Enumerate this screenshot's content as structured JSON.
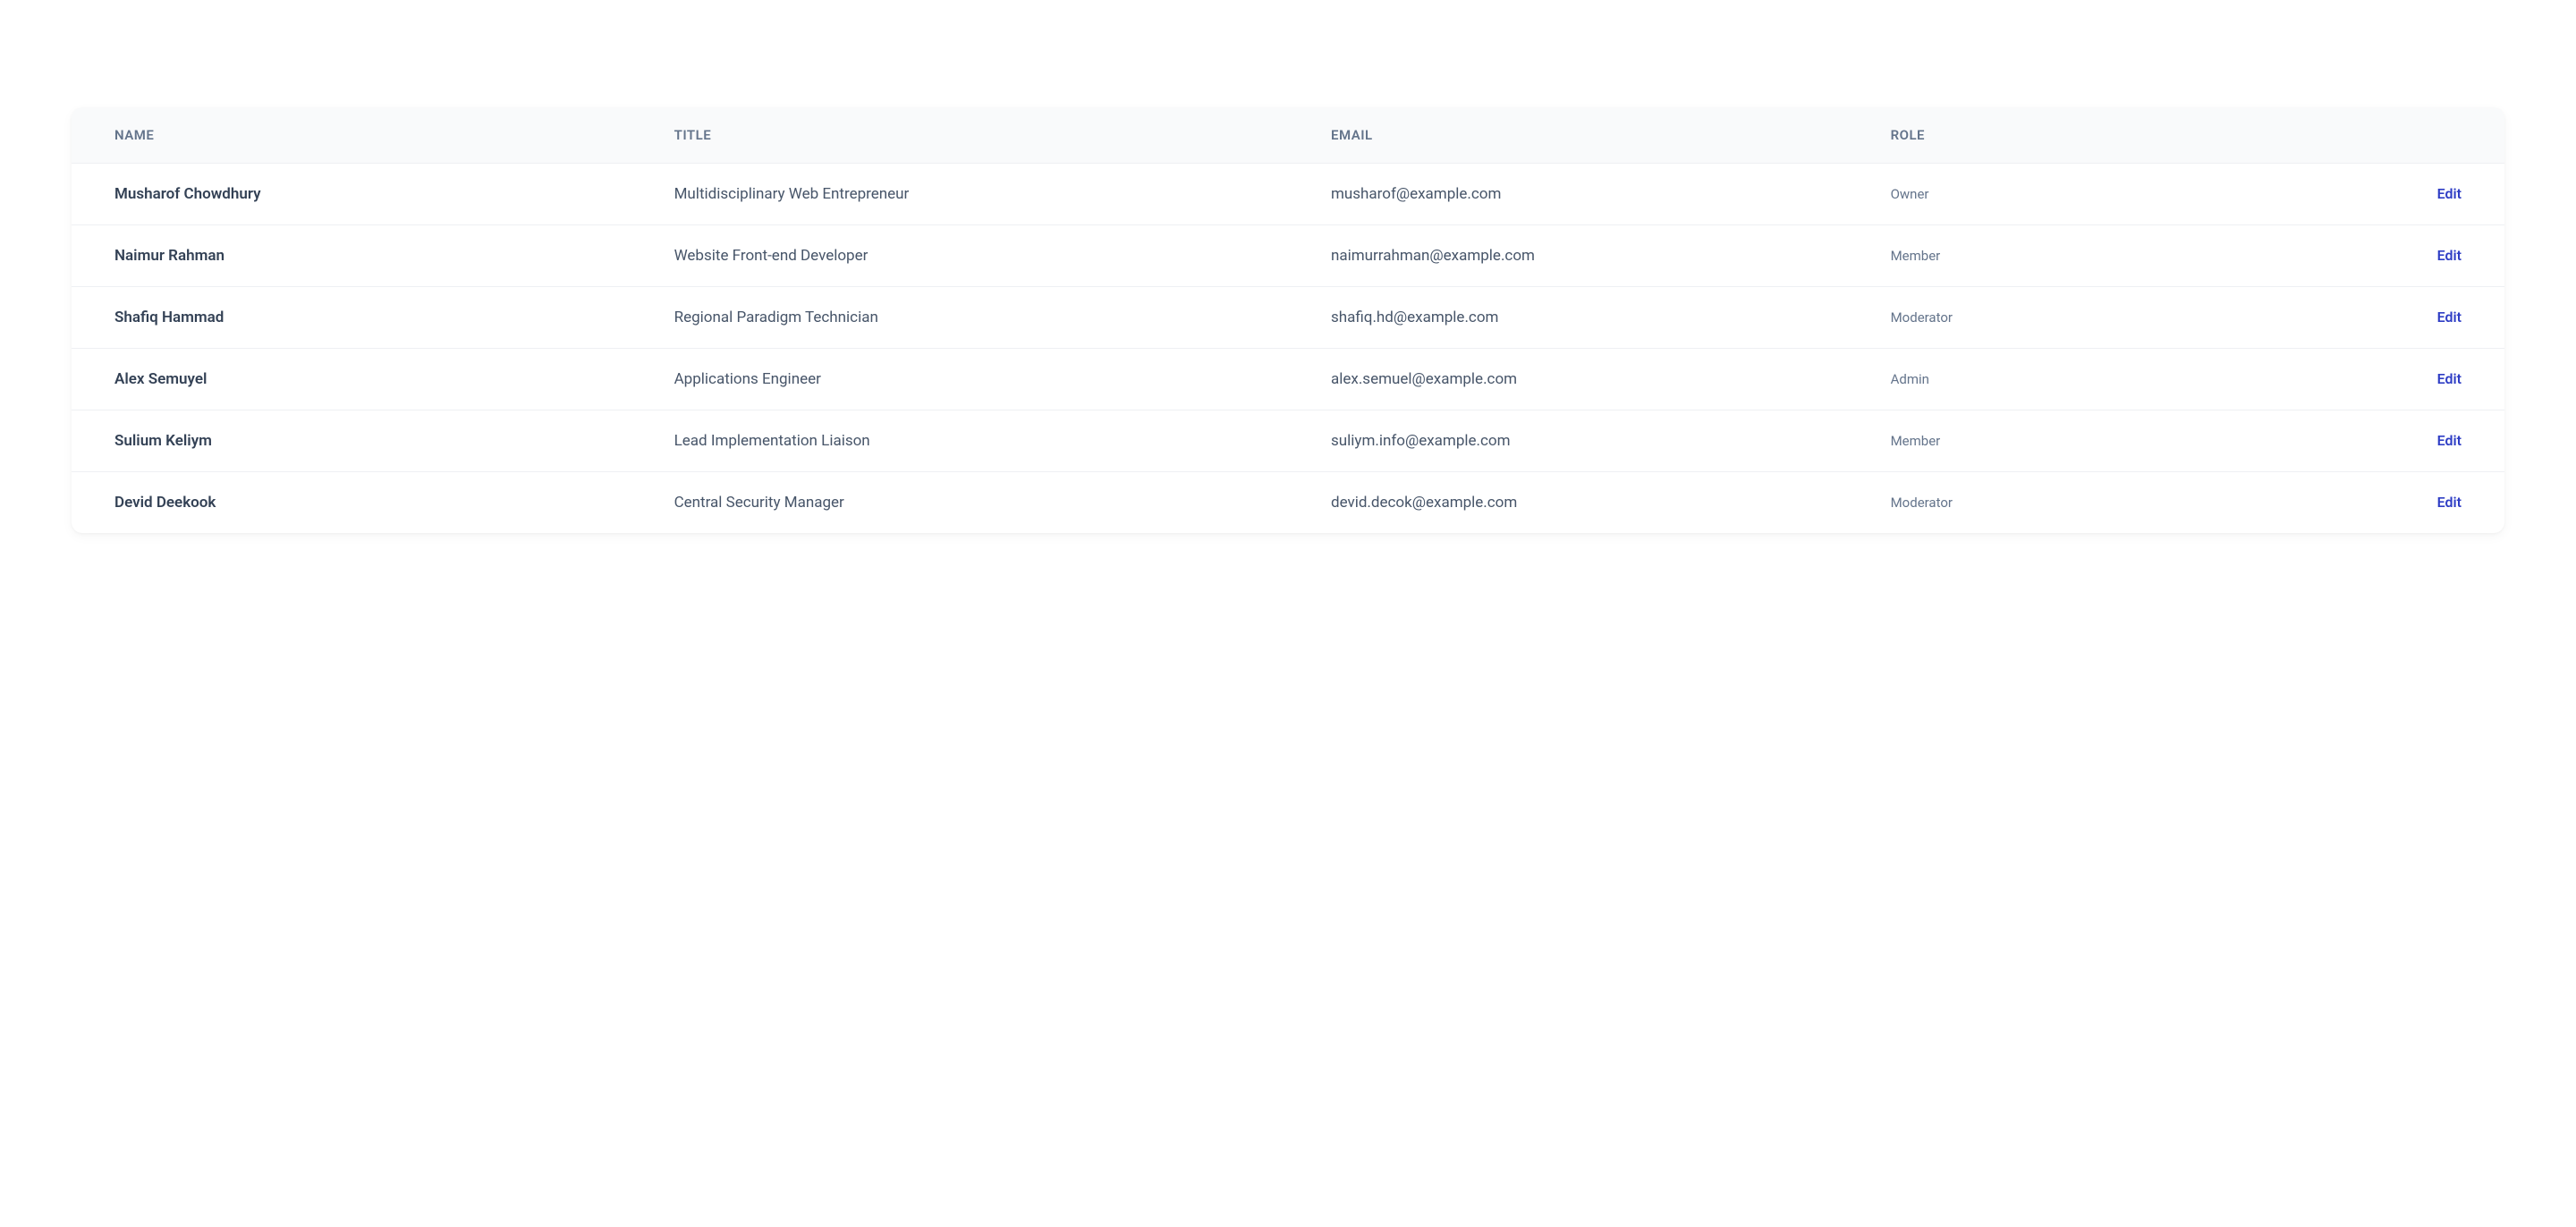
{
  "table": {
    "columns": {
      "name": "NAME",
      "title": "TITLE",
      "email": "EMAIL",
      "role": "ROLE"
    },
    "action_label": "Edit",
    "rows": [
      {
        "name": "Musharof Chowdhury",
        "title": "Multidisciplinary Web Entrepreneur",
        "email": "musharof@example.com",
        "role": "Owner"
      },
      {
        "name": "Naimur Rahman",
        "title": "Website Front-end Developer",
        "email": "naimurrahman@example.com",
        "role": "Member"
      },
      {
        "name": "Shafiq Hammad",
        "title": "Regional Paradigm Technician",
        "email": "shafiq.hd@example.com",
        "role": "Moderator"
      },
      {
        "name": "Alex Semuyel",
        "title": "Applications Engineer",
        "email": "alex.semuel@example.com",
        "role": "Admin"
      },
      {
        "name": "Sulium Keliym",
        "title": "Lead Implementation Liaison",
        "email": "suliym.info@example.com",
        "role": "Member"
      },
      {
        "name": "Devid Deekook",
        "title": "Central Security Manager",
        "email": "devid.decok@example.com",
        "role": "Moderator"
      }
    ]
  },
  "styling": {
    "header_bg": "#f9fafb",
    "header_text_color": "#64748b",
    "row_border_color": "#eef0f3",
    "name_text_color": "#334155",
    "body_text_color": "#475569",
    "role_text_color": "#64748b",
    "link_color": "#2f3ec5",
    "card_bg": "#ffffff",
    "page_bg": "#ffffff"
  }
}
